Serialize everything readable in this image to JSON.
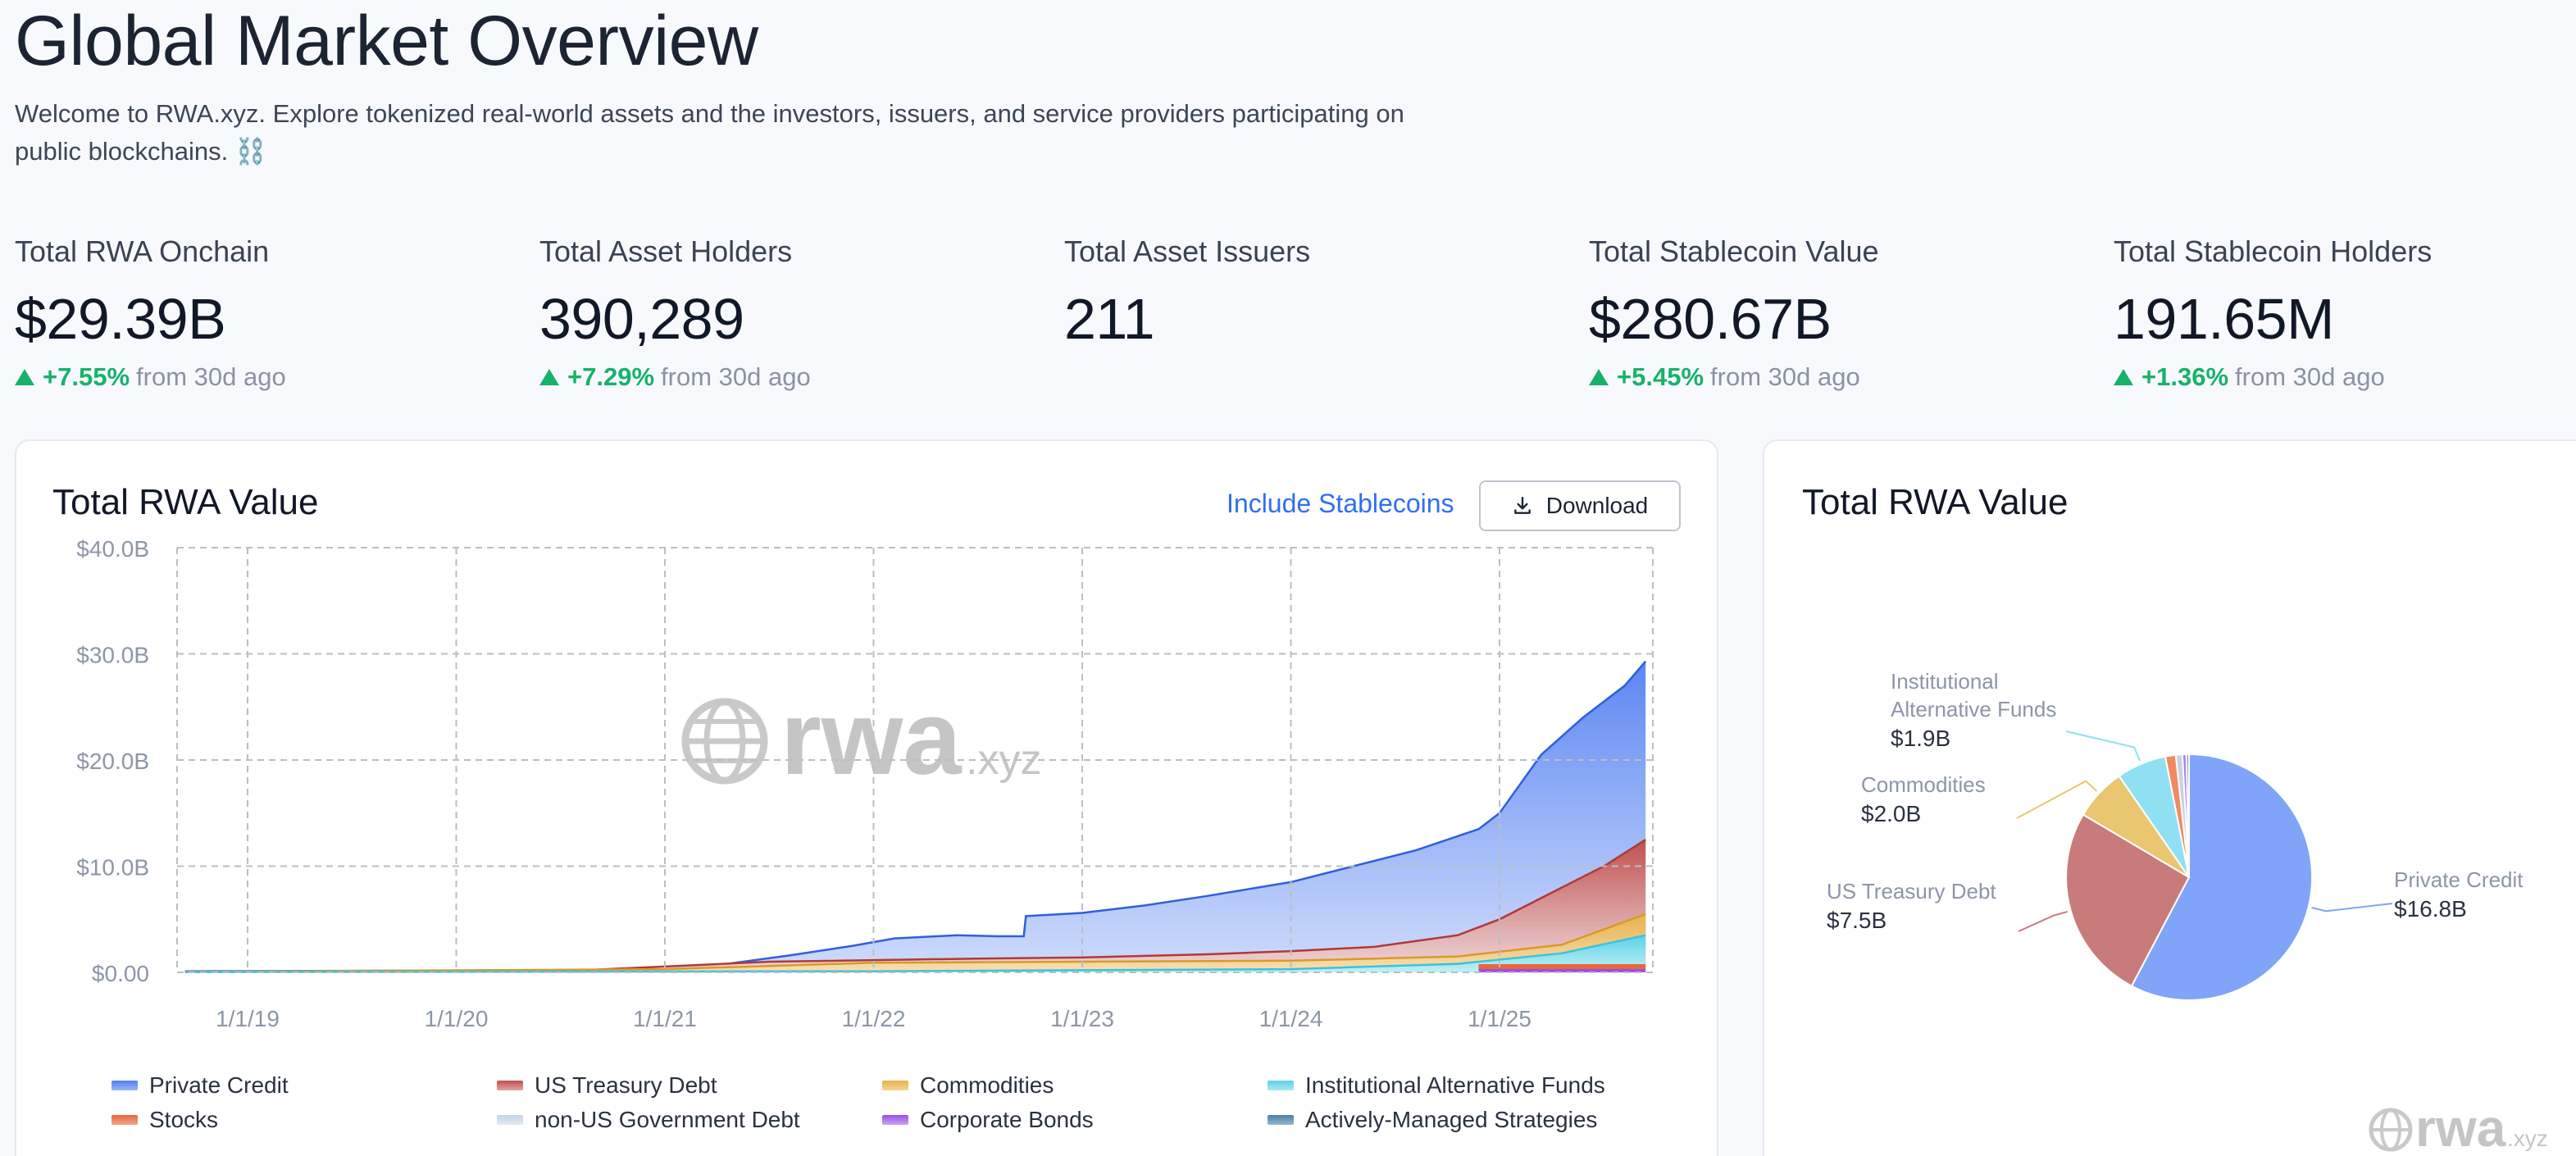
{
  "header": {
    "title": "Global Market Overview",
    "description": "Welcome to RWA.xyz. Explore tokenized real-world assets and the investors, issuers, and service providers participating on public blockchains. ⛓️"
  },
  "stats": [
    {
      "label": "Total RWA Onchain",
      "value": "$29.39B",
      "change": "+7.55%",
      "suffix": "from 30d ago"
    },
    {
      "label": "Total Asset Holders",
      "value": "390,289",
      "change": "+7.29%",
      "suffix": "from 30d ago"
    },
    {
      "label": "Total Asset Issuers",
      "value": "211"
    },
    {
      "label": "Total Stablecoin Value",
      "value": "$280.67B",
      "change": "+5.45%",
      "suffix": "from 30d ago"
    },
    {
      "label": "Total Stablecoin Holders",
      "value": "191.65M",
      "change": "+1.36%",
      "suffix": "from 30d ago"
    }
  ],
  "area_card": {
    "title": "Total RWA Value",
    "toggle_label": "Include Stablecoins",
    "download_label": "Download",
    "download_icon": "download-icon",
    "watermark": {
      "main": "rwa",
      "sub": ".xyz",
      "icon": "globe-icon"
    }
  },
  "pie_card": {
    "title": "Total RWA Value",
    "watermark": {
      "main": "rwa",
      "sub": ".xyz",
      "icon": "globe-icon"
    }
  },
  "chart_data": [
    {
      "type": "area",
      "title": "Total RWA Value",
      "x": [
        "1/1/19",
        "1/1/20",
        "1/1/21",
        "1/1/22",
        "1/1/23",
        "1/1/24",
        "1/1/25"
      ],
      "yticks": [
        "$0.00",
        "$10.0B",
        "$20.0B",
        "$30.0B",
        "$40.0B"
      ],
      "ylim": [
        0,
        40
      ],
      "grid": true,
      "legend_position": "bottom",
      "series": [
        {
          "name": "Private Credit",
          "color": "#4f7ef0"
        },
        {
          "name": "US Treasury Debt",
          "color": "#c0504d"
        },
        {
          "name": "Commodities",
          "color": "#e8b24a"
        },
        {
          "name": "Institutional Alternative Funds",
          "color": "#5bd2ea"
        },
        {
          "name": "Stocks",
          "color": "#e8663a"
        },
        {
          "name": "non-US Government Debt",
          "color": "#c6d4e6"
        },
        {
          "name": "Corporate Bonds",
          "color": "#9b4ee8"
        },
        {
          "name": "Actively-Managed Strategies",
          "color": "#4a7ea8"
        }
      ],
      "total_series": {
        "date": [
          2018.7,
          2019.5,
          2020.5,
          2021.0,
          2021.3,
          2021.6,
          2021.9,
          2022.1,
          2022.4,
          2022.6,
          2022.72,
          2022.73,
          2023.0,
          2023.3,
          2023.6,
          2024.0,
          2024.3,
          2024.6,
          2024.9,
          2025.0,
          2025.2,
          2025.4,
          2025.6,
          2025.7
        ],
        "value": [
          0.1,
          0.15,
          0.2,
          0.3,
          0.8,
          1.6,
          2.5,
          3.2,
          3.5,
          3.4,
          3.4,
          5.3,
          5.6,
          6.3,
          7.2,
          8.5,
          10.0,
          11.5,
          13.5,
          15.0,
          20.5,
          24.0,
          27.0,
          29.3
        ]
      },
      "treasury_series": {
        "date": [
          2018.7,
          2020.5,
          2021.5,
          2022.5,
          2023.0,
          2023.6,
          2024.0,
          2024.4,
          2024.8,
          2025.0,
          2025.3,
          2025.5,
          2025.7
        ],
        "value": [
          0.05,
          0.1,
          1.0,
          1.3,
          1.4,
          1.7,
          2.0,
          2.4,
          3.5,
          5.0,
          8.0,
          10.0,
          12.5
        ]
      },
      "commodities_series": {
        "date": [
          2018.7,
          2021.0,
          2022.0,
          2023.0,
          2024.0,
          2024.8,
          2025.3,
          2025.7
        ],
        "value": [
          0.05,
          0.3,
          0.9,
          1.0,
          1.1,
          1.5,
          2.6,
          5.5
        ]
      },
      "funds_series": {
        "date": [
          2018.7,
          2022.0,
          2024.0,
          2024.8,
          2025.3,
          2025.7
        ],
        "value": [
          0.02,
          0.1,
          0.3,
          0.8,
          1.8,
          3.5
        ]
      }
    },
    {
      "type": "pie",
      "title": "Total RWA Value",
      "slices": [
        {
          "label": "Private Credit",
          "value_text": "$16.8B",
          "value": 16.8,
          "color": "#7fa4f8"
        },
        {
          "label": "US Treasury Debt",
          "value_text": "$7.5B",
          "value": 7.5,
          "color": "#c97b7b"
        },
        {
          "label": "Commodities",
          "value_text": "$2.0B",
          "value": 2.0,
          "color": "#e9c66f"
        },
        {
          "label": "Institutional Alternative Funds",
          "label_lines": [
            "Institutional",
            "Alternative Funds"
          ],
          "value_text": "$1.9B",
          "value": 1.9,
          "color": "#8fe0f2"
        },
        {
          "label": "Stocks",
          "value": 0.4,
          "color": "#f08a63"
        },
        {
          "label": "non-US Government Debt",
          "value": 0.25,
          "color": "#c9d2df"
        },
        {
          "label": "Corporate Bonds",
          "value": 0.15,
          "color": "#b07df0"
        },
        {
          "label": "Actively-Managed Strategies",
          "value": 0.1,
          "color": "#6a8fb3"
        }
      ]
    }
  ]
}
